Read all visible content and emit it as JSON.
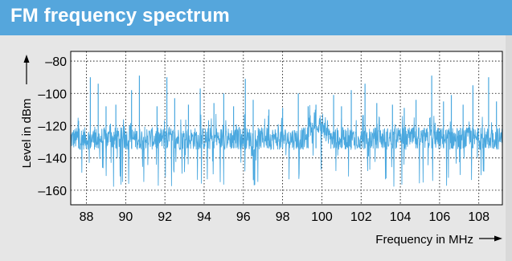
{
  "header": {
    "title": "FM frequency spectrum"
  },
  "colors": {
    "header_bg": "#55a6dc",
    "background": "#e6e6e6",
    "plot_bg": "#ffffff",
    "series": "#4aa8df",
    "grid": "#000000"
  },
  "chart_data": {
    "type": "line",
    "xlabel": "Frequency in MHz",
    "ylabel": "Level in dBm",
    "xlim": [
      87.2,
      109.2
    ],
    "ylim": [
      -169,
      -74
    ],
    "x_ticks": [
      88,
      90,
      92,
      94,
      96,
      98,
      100,
      102,
      104,
      106,
      108
    ],
    "x_tick_labels": [
      "88",
      "90",
      "92",
      "94",
      "96",
      "98",
      "100",
      "102",
      "104",
      "106",
      "108"
    ],
    "y_ticks": [
      -80,
      -100,
      -120,
      -140,
      -160
    ],
    "y_tick_labels": [
      "–80",
      "–100",
      "–120",
      "–140",
      "–160"
    ],
    "grid": "dotted",
    "noise_floor_dbm": -128,
    "series": [
      {
        "peaks": [
          {
            "x": 87.6,
            "y": -117
          },
          {
            "x": 88.2,
            "y": -90
          },
          {
            "x": 88.6,
            "y": -94
          },
          {
            "x": 89.0,
            "y": -108
          },
          {
            "x": 89.5,
            "y": -107
          },
          {
            "x": 90.3,
            "y": -98
          },
          {
            "x": 90.7,
            "y": -89
          },
          {
            "x": 91.6,
            "y": -108
          },
          {
            "x": 92.1,
            "y": -90
          },
          {
            "x": 92.5,
            "y": -103
          },
          {
            "x": 93.2,
            "y": -107
          },
          {
            "x": 93.8,
            "y": -97
          },
          {
            "x": 94.5,
            "y": -106
          },
          {
            "x": 95.0,
            "y": -100
          },
          {
            "x": 95.5,
            "y": -108
          },
          {
            "x": 96.1,
            "y": -91
          },
          {
            "x": 96.5,
            "y": -104
          },
          {
            "x": 97.3,
            "y": -110
          },
          {
            "x": 98.0,
            "y": -109
          },
          {
            "x": 98.8,
            "y": -100
          },
          {
            "x": 99.3,
            "y": -108
          },
          {
            "x": 99.7,
            "y": -107
          },
          {
            "x": 100.6,
            "y": -101
          },
          {
            "x": 101.0,
            "y": -108
          },
          {
            "x": 101.5,
            "y": -98
          },
          {
            "x": 102.2,
            "y": -94
          },
          {
            "x": 102.8,
            "y": -106
          },
          {
            "x": 103.6,
            "y": -107
          },
          {
            "x": 104.2,
            "y": -109
          },
          {
            "x": 104.8,
            "y": -104
          },
          {
            "x": 105.6,
            "y": -89
          },
          {
            "x": 106.2,
            "y": -105
          },
          {
            "x": 106.6,
            "y": -101
          },
          {
            "x": 107.2,
            "y": -107
          },
          {
            "x": 107.7,
            "y": -95
          },
          {
            "x": 108.5,
            "y": -90
          },
          {
            "x": 108.9,
            "y": -105
          }
        ]
      }
    ]
  }
}
